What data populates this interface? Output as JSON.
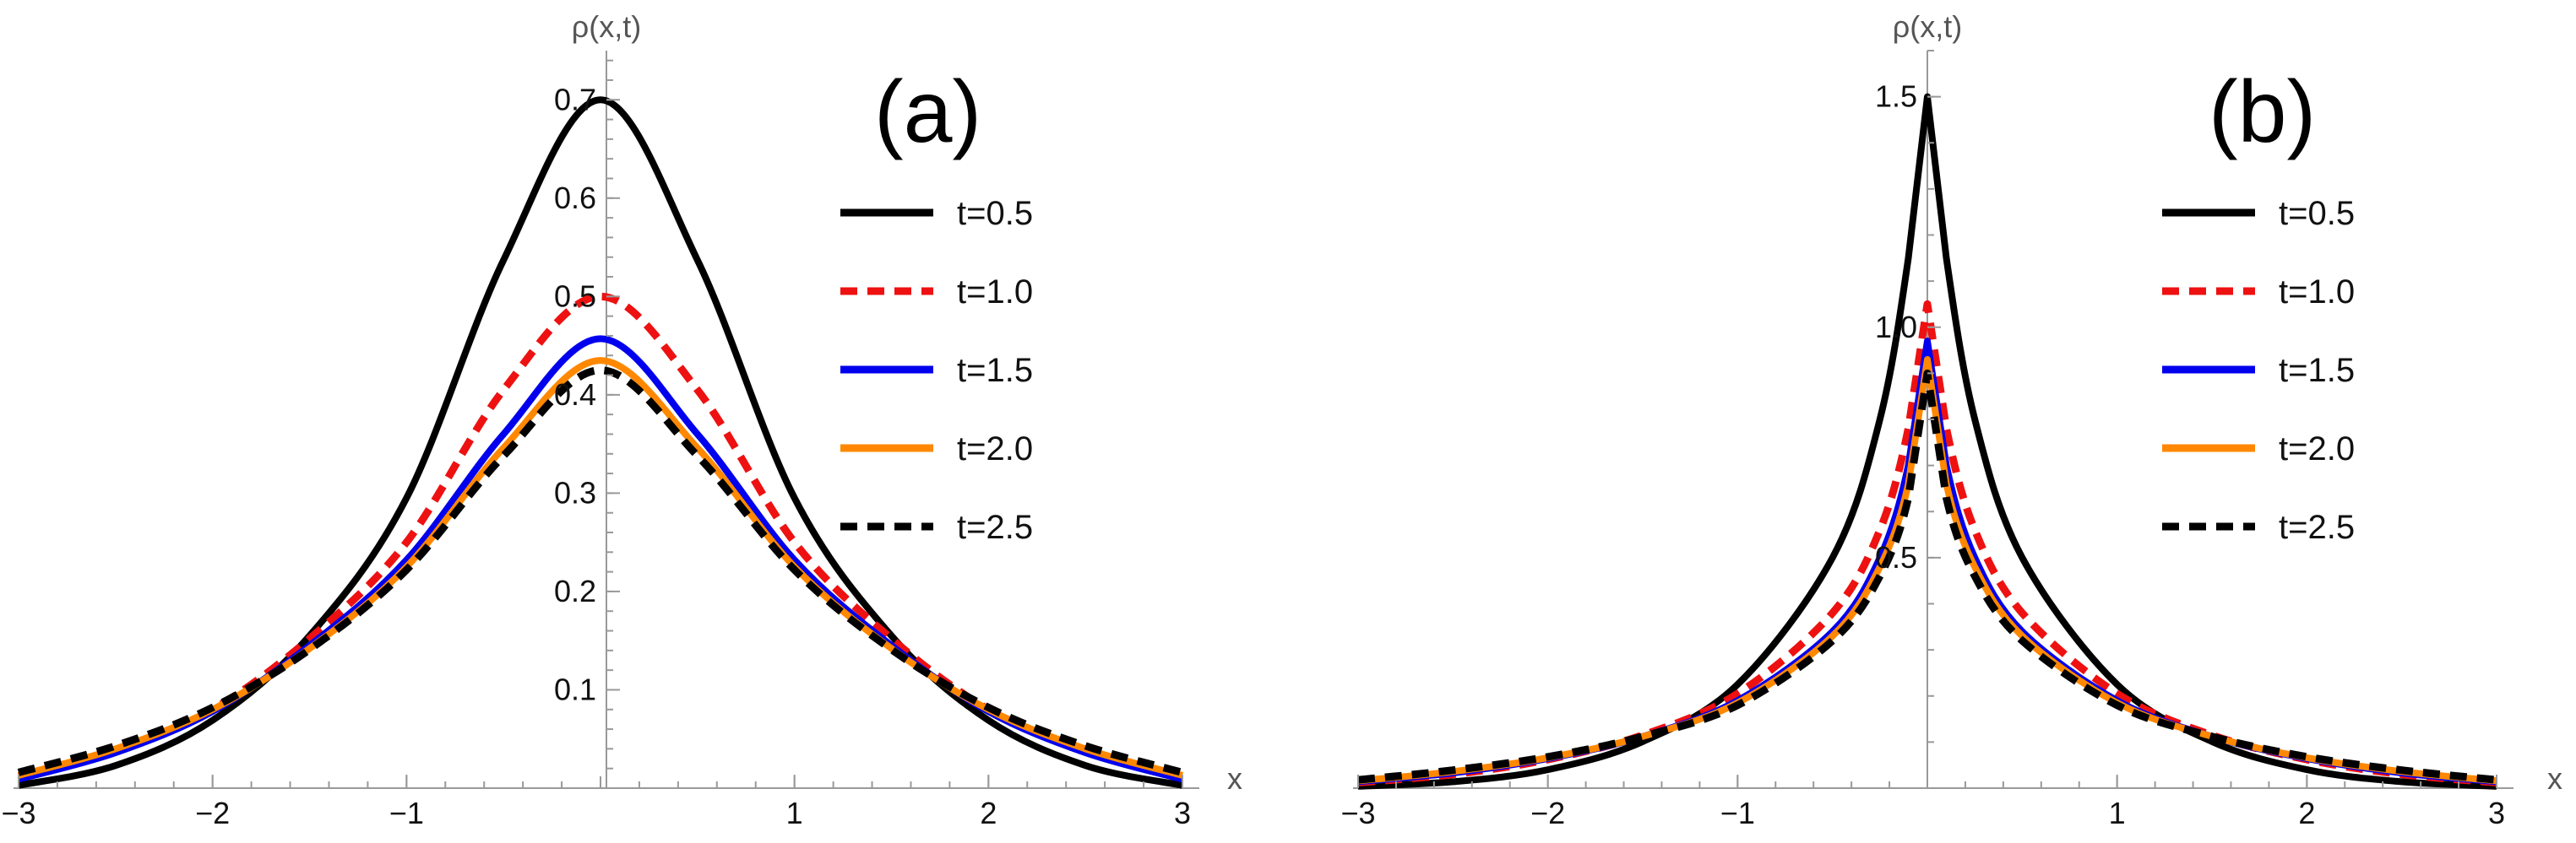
{
  "chart_data": [
    {
      "type": "line",
      "panel": "(a)",
      "xlabel": "x",
      "ylabel": "ρ(x,t)",
      "xlim": [
        -3,
        3
      ],
      "ylim": [
        0,
        0.75
      ],
      "xticks": [
        -3,
        -2,
        -1,
        1,
        2,
        3
      ],
      "xtick_labels": [
        "−3",
        "−2",
        "−1",
        "1",
        "2",
        "3"
      ],
      "yticks": [
        0.1,
        0.2,
        0.3,
        0.4,
        0.5,
        0.6,
        0.7
      ],
      "ytick_labels": [
        "0.1",
        "0.2",
        "0.3",
        "0.4",
        "0.5",
        "0.6",
        "0.7"
      ],
      "legend_position": "right",
      "x": [
        -3,
        -2.5,
        -2,
        -1.5,
        -1,
        -0.5,
        0,
        0.5,
        1,
        1.5,
        2,
        2.5,
        3
      ],
      "series": [
        {
          "name": "t=0.5",
          "color": "#000000",
          "style": "solid",
          "values": [
            0.0028,
            0.023,
            0.069,
            0.155,
            0.295,
            0.537,
            0.7,
            0.537,
            0.295,
            0.155,
            0.069,
            0.023,
            0.0028
          ]
        },
        {
          "name": "t=1.0",
          "color": "#ee1111",
          "style": "dashed",
          "values": [
            0.012,
            0.038,
            0.08,
            0.152,
            0.25,
            0.405,
            0.5,
            0.405,
            0.25,
            0.152,
            0.08,
            0.038,
            0.012
          ]
        },
        {
          "name": "t=1.5",
          "color": "#0000ee",
          "style": "solid",
          "values": [
            0.009,
            0.036,
            0.078,
            0.145,
            0.232,
            0.36,
            0.457,
            0.36,
            0.232,
            0.145,
            0.078,
            0.036,
            0.009
          ]
        },
        {
          "name": "t=2.0",
          "color": "#ff8800",
          "style": "solid",
          "values": [
            0.013,
            0.04,
            0.08,
            0.142,
            0.225,
            0.346,
            0.435,
            0.346,
            0.225,
            0.142,
            0.08,
            0.04,
            0.013
          ]
        },
        {
          "name": "t=2.5",
          "color": "#000000",
          "style": "dashed",
          "values": [
            0.016,
            0.043,
            0.082,
            0.141,
            0.222,
            0.338,
            0.425,
            0.338,
            0.222,
            0.141,
            0.082,
            0.043,
            0.016
          ]
        }
      ]
    },
    {
      "type": "line",
      "panel": "(b)",
      "xlabel": "x",
      "ylabel": "ρ(x,t)",
      "xlim": [
        -3,
        3
      ],
      "ylim": [
        0,
        1.6
      ],
      "xticks": [
        -3,
        -2,
        -1,
        1,
        2,
        3
      ],
      "xtick_labels": [
        "−3",
        "−2",
        "−1",
        "1",
        "2",
        "3"
      ],
      "yticks": [
        0.5,
        1.0,
        1.5
      ],
      "ytick_labels": [
        "0.5",
        "1.0",
        "1.5"
      ],
      "legend_position": "right",
      "x": [
        -3,
        -2.5,
        -2,
        -1.5,
        -1,
        -0.5,
        -0.25,
        -0.1,
        0,
        0.1,
        0.25,
        0.5,
        1,
        1.5,
        2,
        2.5,
        3
      ],
      "series": [
        {
          "name": "t=0.5",
          "color": "#000000",
          "style": "solid",
          "values": [
            0.004,
            0.014,
            0.04,
            0.101,
            0.225,
            0.5,
            0.8,
            1.15,
            1.5,
            1.15,
            0.8,
            0.5,
            0.225,
            0.101,
            0.04,
            0.014,
            0.004
          ]
        },
        {
          "name": "t=1.0",
          "color": "#ee1111",
          "style": "dashed",
          "values": [
            0.012,
            0.03,
            0.062,
            0.115,
            0.205,
            0.38,
            0.56,
            0.78,
            1.05,
            0.78,
            0.56,
            0.38,
            0.205,
            0.115,
            0.062,
            0.03,
            0.012
          ]
        },
        {
          "name": "t=1.5",
          "color": "#0000ee",
          "style": "solid",
          "values": [
            0.014,
            0.033,
            0.064,
            0.112,
            0.19,
            0.34,
            0.5,
            0.7,
            0.97,
            0.7,
            0.5,
            0.34,
            0.19,
            0.112,
            0.064,
            0.033,
            0.014
          ]
        },
        {
          "name": "t=2.0",
          "color": "#ff8800",
          "style": "solid",
          "values": [
            0.016,
            0.036,
            0.066,
            0.112,
            0.185,
            0.33,
            0.48,
            0.66,
            0.93,
            0.66,
            0.48,
            0.33,
            0.185,
            0.112,
            0.066,
            0.036,
            0.016
          ]
        },
        {
          "name": "t=2.5",
          "color": "#000000",
          "style": "dashed",
          "values": [
            0.018,
            0.039,
            0.068,
            0.112,
            0.18,
            0.32,
            0.46,
            0.63,
            0.9,
            0.63,
            0.46,
            0.32,
            0.18,
            0.112,
            0.068,
            0.039,
            0.018
          ]
        }
      ]
    }
  ]
}
